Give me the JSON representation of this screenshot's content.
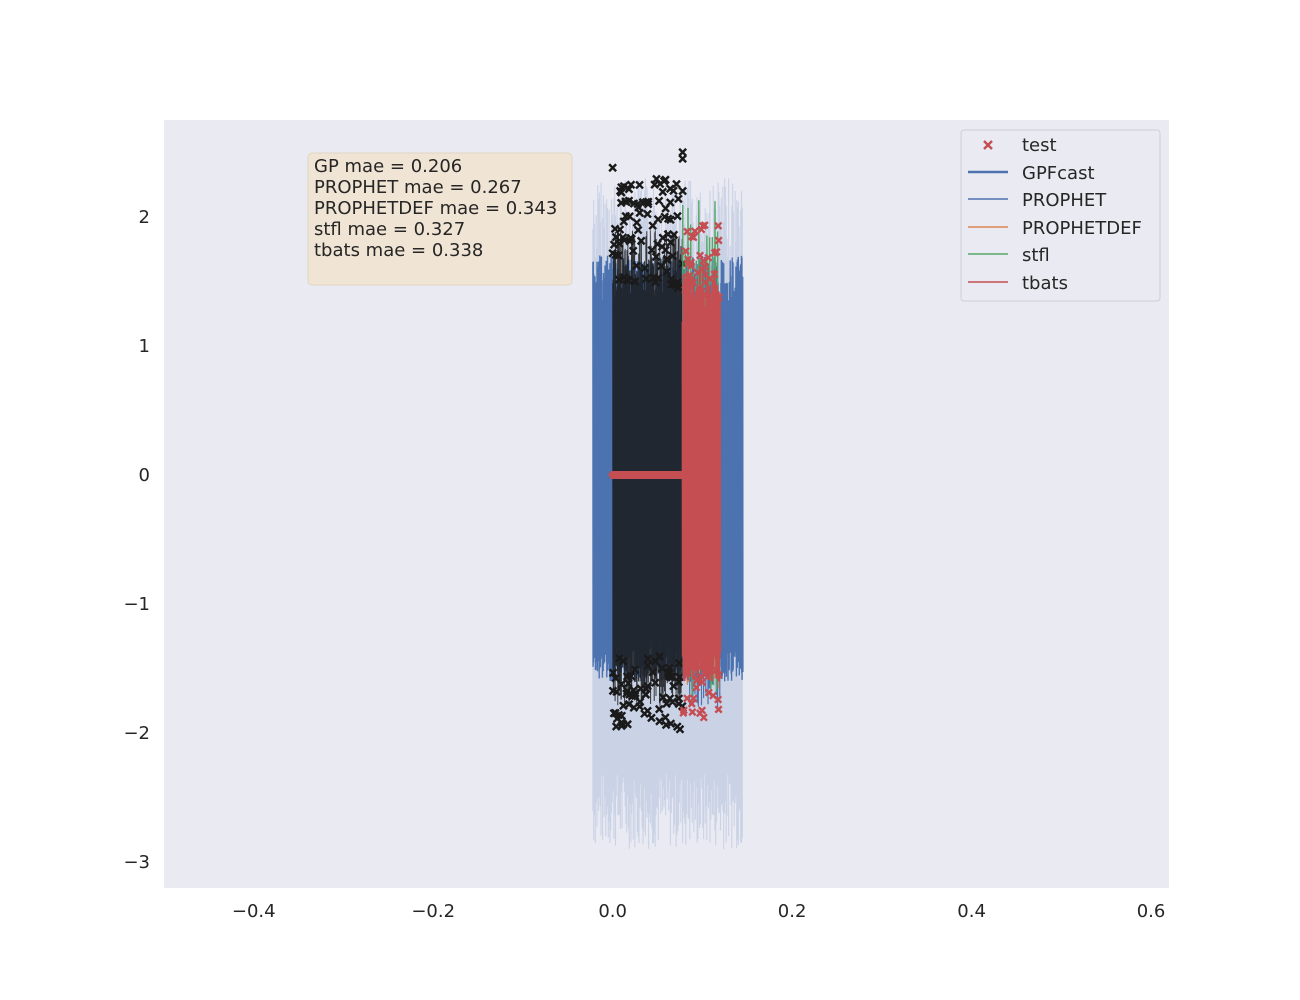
{
  "chart_data": {
    "type": "line",
    "title": "",
    "xlabel": "",
    "ylabel": "",
    "xlim": [
      -0.5,
      0.62
    ],
    "ylim": [
      -3.2,
      2.75
    ],
    "grid": false,
    "legend_position": "top-right",
    "xticks": [
      -0.4,
      -0.2,
      0.0,
      0.2,
      0.4,
      0.6
    ],
    "xtick_labels": [
      "−0.4",
      "−0.2",
      "0.0",
      "0.2",
      "0.4",
      "0.6"
    ],
    "yticks": [
      -3,
      -2,
      -1,
      0,
      1,
      2
    ],
    "ytick_labels": [
      "−3",
      "−2",
      "−1",
      "0",
      "1",
      "2"
    ],
    "colors": {
      "axes_bg": "#eaeaf2",
      "gp": "#4c72b0",
      "gp_band": "#c6d0e4",
      "prophet": "#4c72b0",
      "prophetdef": "#dd8452",
      "stfl": "#55a868",
      "tbats": "#c44e52",
      "train_marker": "#1a1a1a",
      "test_marker": "#c44e52",
      "annotation_bg": "#f0e4d4"
    },
    "series": [
      {
        "name": "test",
        "kind": "scatter-x",
        "x_range": [
          0.078,
          0.12
        ],
        "y_range": [
          -1.88,
          1.95
        ]
      },
      {
        "name": "GPFcast",
        "kind": "line",
        "x_range": [
          -0.022,
          0.145
        ],
        "y_range": [
          -1.6,
          1.7
        ],
        "band": [
          -2.9,
          2.3
        ]
      },
      {
        "name": "PROPHET",
        "kind": "line",
        "x_range": [
          0.078,
          0.12
        ],
        "y_range": [
          -1.8,
          1.6
        ]
      },
      {
        "name": "PROPHETDEF",
        "kind": "line",
        "x_range": [
          0.078,
          0.12
        ],
        "y_range": [
          -1.7,
          1.6
        ]
      },
      {
        "name": "stfl",
        "kind": "line",
        "x_range": [
          0.078,
          0.12
        ],
        "y_range": [
          -1.75,
          2.15
        ]
      },
      {
        "name": "tbats",
        "kind": "line",
        "x_range": [
          0.0,
          0.12
        ],
        "y_range": [
          -1.88,
          1.95
        ]
      }
    ],
    "train_points": {
      "x_range": [
        0.0,
        0.078
      ],
      "y_range": [
        -1.98,
        2.52
      ]
    },
    "annotation": {
      "lines": [
        "GP mae = 0.206",
        "PROPHET mae = 0.267",
        "PROPHETDEF mae = 0.343",
        "stfl mae = 0.327",
        "tbats mae = 0.338"
      ]
    }
  }
}
